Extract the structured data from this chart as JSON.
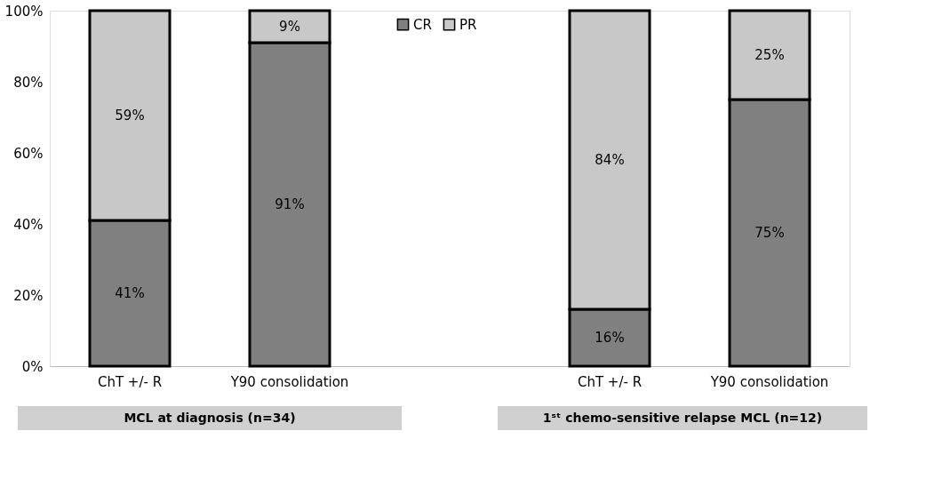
{
  "chart_data": {
    "type": "bar",
    "stacked": true,
    "categories": [
      "ChT +/- R",
      "Y90 consolidation",
      null,
      "ChT +/- R",
      "Y90 consolidation"
    ],
    "series": [
      {
        "name": "CR",
        "color": "#808080",
        "values": [
          41,
          91,
          null,
          16,
          75
        ],
        "value_labels": [
          "41%",
          "91%",
          null,
          "16%",
          "75%"
        ]
      },
      {
        "name": "PR",
        "color": "#c8c8c8",
        "values": [
          59,
          9,
          null,
          84,
          25
        ],
        "value_labels": [
          "59%",
          "9%",
          null,
          "84%",
          "25%"
        ]
      }
    ],
    "ylim": [
      0,
      100
    ],
    "yticks": [
      {
        "value": 0,
        "label": "0%"
      },
      {
        "value": 20,
        "label": "20%"
      },
      {
        "value": 40,
        "label": "40%"
      },
      {
        "value": 60,
        "label": "60%"
      },
      {
        "value": 80,
        "label": "80%"
      },
      {
        "value": 100,
        "label": "100%"
      }
    ],
    "annotations": [
      "MCL at diagnosis (n=34)",
      "1ˢᵗ chemo-sensitive relapse MCL  (n=12)"
    ],
    "legend": "top",
    "grid": false
  }
}
